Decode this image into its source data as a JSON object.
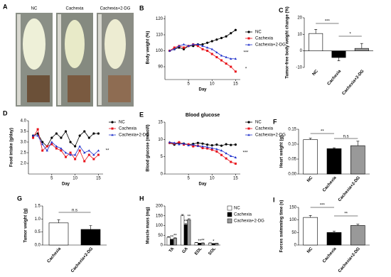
{
  "photo_panel": {
    "panel": "A",
    "labels": [
      "NC",
      "Cachexia",
      "Cachexia+2-DG"
    ]
  },
  "chart_data": [
    {
      "panel": "B",
      "type": "line",
      "y_label": "Body weight (%)",
      "x_label": "Day",
      "x": [
        1,
        2,
        3,
        4,
        5,
        6,
        7,
        8,
        9,
        10,
        11,
        12,
        13,
        14,
        15
      ],
      "xlim": [
        0,
        16
      ],
      "xticks": [
        5,
        10,
        15
      ],
      "ylim": [
        82,
        122
      ],
      "yticks": [
        90,
        100,
        110,
        120
      ],
      "series": [
        {
          "name": "NC",
          "color": "#000000",
          "values": [
            100,
            101,
            102,
            101,
            103,
            103,
            104,
            104,
            105,
            106,
            107,
            108,
            109,
            111,
            113
          ]
        },
        {
          "name": "Cachexia",
          "color": "#e8121a",
          "values": [
            100,
            102,
            103,
            102,
            103,
            104,
            103,
            101,
            100,
            98,
            96,
            94,
            92,
            90,
            87
          ]
        },
        {
          "name": "Cachexia+2-DG",
          "color": "#2233cc",
          "values": [
            100,
            101,
            103,
            104,
            103,
            104,
            104,
            103,
            102,
            101,
            99,
            97,
            96,
            95,
            95
          ]
        }
      ],
      "annotations": [
        "***",
        "*"
      ]
    },
    {
      "panel": "C",
      "type": "bar",
      "y_label": "Tumor-free body weight change (%)",
      "categories": [
        "NC",
        "Cachexia",
        "Cachexia+2-DG"
      ],
      "values": [
        10.5,
        -4,
        1.5
      ],
      "errors": [
        2.5,
        2,
        3
      ],
      "colors": [
        "#ffffff",
        "#000000",
        "#999999"
      ],
      "ylim": [
        -10,
        20
      ],
      "yticks": [
        -10,
        0,
        10,
        20
      ],
      "annotations": [
        "***",
        "*"
      ]
    },
    {
      "panel": "D",
      "type": "line",
      "y_label": "Food intake (g/day)",
      "x_label": "Day",
      "x": [
        1,
        2,
        3,
        4,
        5,
        6,
        7,
        8,
        9,
        10,
        11,
        12,
        13,
        14,
        15
      ],
      "xlim": [
        0,
        16
      ],
      "xticks": [
        5,
        10,
        15
      ],
      "ylim": [
        1.5,
        4.0
      ],
      "yticks": [
        {
          "value": 2,
          "label": "2.0"
        },
        2.5,
        {
          "value": 3,
          "label": "3.0"
        },
        3.5,
        {
          "value": 4,
          "label": "4.0"
        }
      ],
      "series": [
        {
          "name": "NC",
          "color": "#000000",
          "values": [
            3.3,
            3.4,
            3.0,
            2.8,
            3.2,
            3.4,
            3.2,
            3.5,
            3.0,
            2.8,
            3.3,
            3.5,
            3.2,
            3.4,
            3.4
          ]
        },
        {
          "name": "Cachexia",
          "color": "#e8121a",
          "values": [
            3.2,
            3.6,
            2.6,
            2.8,
            2.9,
            2.7,
            2.6,
            2.3,
            2.5,
            2.2,
            2.6,
            2.1,
            2.4,
            2.2,
            2.4
          ]
        },
        {
          "name": "Cachexia+2-DG",
          "color": "#2233cc",
          "values": [
            3.3,
            3.3,
            2.9,
            2.6,
            3.0,
            2.8,
            2.7,
            2.5,
            2.4,
            2.4,
            2.8,
            2.5,
            2.6,
            2.4,
            2.6
          ]
        }
      ],
      "annotations": [
        "**"
      ]
    },
    {
      "panel": "E",
      "type": "line",
      "title": "Blood glucose",
      "y_label": "Blood glucose (mmol/l)",
      "x_label": "Day",
      "x": [
        1,
        2,
        3,
        4,
        5,
        6,
        7,
        8,
        9,
        10,
        11,
        12,
        13,
        14,
        15
      ],
      "xlim": [
        0,
        16
      ],
      "xticks": [
        5,
        10,
        15
      ],
      "ylim": [
        0,
        15
      ],
      "yticks": [
        0,
        5,
        10,
        15
      ],
      "series": [
        {
          "name": "NC",
          "color": "#000000",
          "values": [
            9,
            8.5,
            9,
            8.8,
            8.5,
            8.7,
            9,
            8.8,
            8.5,
            8.3,
            8.5,
            8.2,
            8.6,
            8.4,
            8.5
          ]
        },
        {
          "name": "Cachexia",
          "color": "#e8121a",
          "values": [
            9,
            8.8,
            9.2,
            8.5,
            8.6,
            8,
            8.2,
            7.5,
            7.4,
            7,
            6.5,
            5.5,
            4.5,
            3.5,
            3
          ]
        },
        {
          "name": "Cachexia+2-DG",
          "color": "#2233cc",
          "values": [
            9.2,
            9,
            8.6,
            8.8,
            8.3,
            8.5,
            8.1,
            8,
            7.8,
            7.5,
            7.2,
            6.8,
            6,
            5.2,
            4.8
          ]
        }
      ],
      "annotations": [
        "***"
      ]
    },
    {
      "panel": "F",
      "type": "bar",
      "y_label": "Heart weight (g)",
      "categories": [
        "NC",
        "Cachexia",
        "Cachexia+2-DG"
      ],
      "values": [
        0.115,
        0.085,
        0.095
      ],
      "errors": [
        0.005,
        0.003,
        0.015
      ],
      "colors": [
        "#ffffff",
        "#000000",
        "#999999"
      ],
      "ylim": [
        0,
        0.15
      ],
      "yticks": [
        {
          "value": 0,
          "label": "0.00"
        },
        0.05,
        {
          "value": 0.1,
          "label": "0.10"
        },
        0.15
      ],
      "annotations": [
        "**",
        "n.s"
      ]
    },
    {
      "panel": "G",
      "type": "bar",
      "y_label": "Tumor weight (g)",
      "categories": [
        "Cachexia",
        "Cachexia+2-DG"
      ],
      "values": [
        0.85,
        0.6
      ],
      "errors": [
        0.12,
        0.15
      ],
      "colors": [
        "#ffffff",
        "#000000"
      ],
      "ylim": [
        0,
        1.5
      ],
      "yticks": [
        {
          "value": 0,
          "label": "0.0"
        },
        0.5,
        {
          "value": 1,
          "label": "1.0"
        },
        1.5
      ],
      "annotations": [
        "n.s"
      ]
    },
    {
      "panel": "H",
      "type": "bar",
      "y_label": "Muscle mass (mg)",
      "categories": [
        "TA",
        "GA",
        "EDL",
        "SOL"
      ],
      "ylim": [
        0,
        200
      ],
      "yticks": [
        0,
        50,
        100,
        150,
        200
      ],
      "series": [
        {
          "name": "NC",
          "color": "#ffffff",
          "values": [
            40,
            150,
            12,
            10
          ],
          "errors": [
            3,
            6,
            1,
            1
          ]
        },
        {
          "name": "Cachexia",
          "color": "#000000",
          "values": [
            28,
            105,
            9,
            7
          ],
          "errors": [
            2,
            5,
            1,
            1
          ]
        },
        {
          "name": "Cachexia+2-DG",
          "color": "#999999",
          "values": [
            35,
            130,
            10,
            9
          ],
          "errors": [
            2,
            5,
            1,
            1
          ]
        }
      ],
      "annotations": [
        "**",
        "**",
        "**",
        "**",
        "**",
        "**",
        "*"
      ]
    },
    {
      "panel": "I",
      "type": "bar",
      "y_label": "Forces swimming time (s)",
      "categories": [
        "NC",
        "Cachexia",
        "Cachexia+2-DG"
      ],
      "values": [
        110,
        50,
        78
      ],
      "errors": [
        8,
        5,
        5
      ],
      "colors": [
        "#ffffff",
        "#000000",
        "#999999"
      ],
      "ylim": [
        0,
        150
      ],
      "yticks": [
        0,
        50,
        100,
        150
      ],
      "annotations": [
        "***",
        "**"
      ]
    }
  ]
}
